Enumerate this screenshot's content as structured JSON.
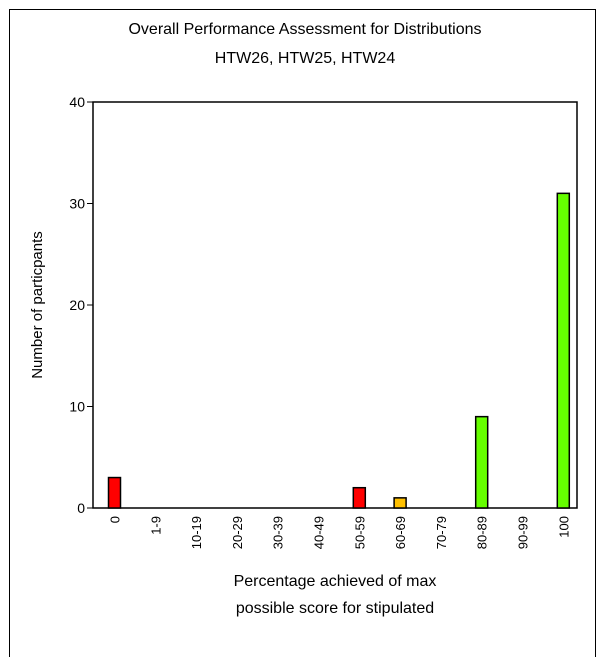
{
  "chart_data": {
    "type": "bar",
    "title": "Overall Performance Assessment for Distributions",
    "subtitle": "HTW26, HTW25, HTW24",
    "xlabel": [
      "Percentage achieved of max",
      "possible score for stipulated"
    ],
    "ylabel": "Number of particpants",
    "ylim": [
      0,
      40
    ],
    "yticks": [
      0,
      10,
      20,
      30,
      40
    ],
    "categories": [
      "0",
      "1-9",
      "10-19",
      "20-29",
      "30-39",
      "40-49",
      "50-59",
      "60-69",
      "70-79",
      "80-89",
      "90-99",
      "100"
    ],
    "values": [
      3,
      0,
      0,
      0,
      0,
      0,
      2,
      1,
      0,
      9,
      0,
      31
    ],
    "bar_colors": [
      "#ff0000",
      "#ff0000",
      "#ff0000",
      "#ff0000",
      "#ff0000",
      "#ff0000",
      "#ff0000",
      "#ffc000",
      "#66ff00",
      "#66ff00",
      "#66ff00",
      "#66ff00"
    ],
    "grid": false,
    "legend": "none"
  }
}
